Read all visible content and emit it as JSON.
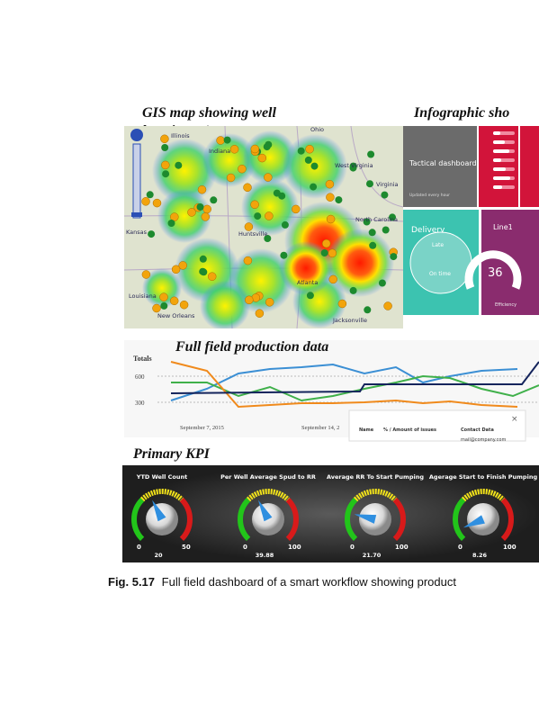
{
  "gis": {
    "title_lines": [
      "GIS map showing well",
      "location w/status"
    ],
    "labels": [
      "Illinois",
      "Ohio",
      "Indiana",
      "West Virginia",
      "Virginia",
      "North Carolina",
      "Kansas",
      "Huntsville",
      "Louisiana",
      "Atlanta",
      "Jacksonville",
      "New Orleans"
    ]
  },
  "infographic": {
    "title": "Infographic sho",
    "tactical": "Tactical dashboard",
    "updated": "Updated every hour",
    "delivery": "Delivery",
    "late": "Late",
    "on_time": "On time",
    "line": "Line1",
    "line_value": "36",
    "efficiency": "Efficiency"
  },
  "production": {
    "title": "Full field production data",
    "axis_label": "Totals",
    "yticks": [
      "600",
      "300"
    ],
    "dates": [
      "September 7, 2015",
      "September 14, 2"
    ],
    "popup": {
      "close": "×",
      "columns": [
        "Name",
        "% / Amount of issues",
        "Contact Data"
      ],
      "email": "mail@company.com"
    }
  },
  "kpi": {
    "title": "Primary KPI",
    "gauges": [
      {
        "name": "YTD Well Count",
        "min": "0",
        "max": "50",
        "value": "20"
      },
      {
        "name": "Per Well Average Spud to RR",
        "min": "0",
        "max": "100",
        "value": "39.88"
      },
      {
        "name": "Average RR To Start Pumping",
        "min": "0",
        "max": "100",
        "value": "21.70"
      },
      {
        "name": "Agerage Start to Finish Pumping",
        "min": "0",
        "max": "100",
        "value": "8.26"
      }
    ]
  },
  "caption": {
    "label": "Fig. 5.17",
    "text": "Full field dashboard of a smart workflow showing product"
  }
}
